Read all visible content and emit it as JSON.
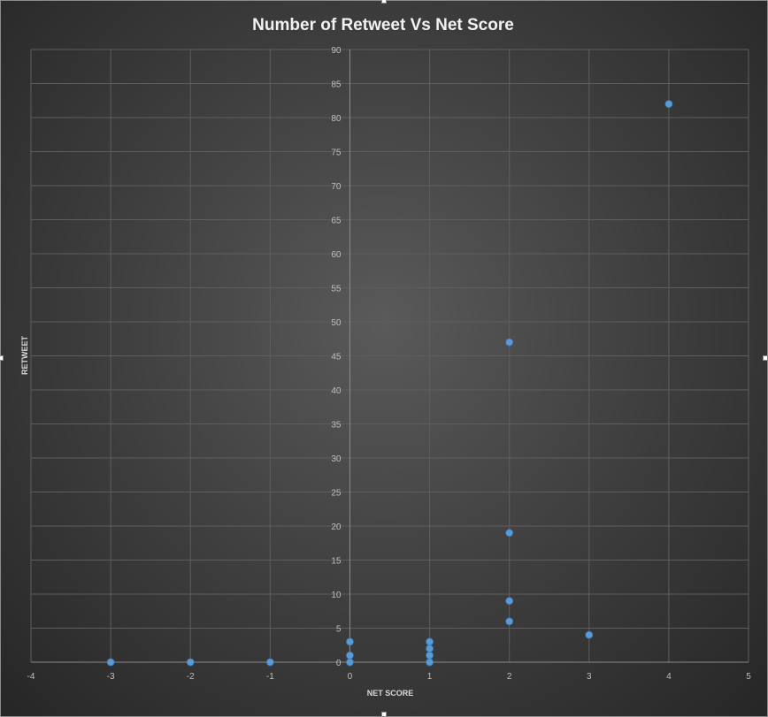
{
  "chart_data": {
    "type": "scatter",
    "title": "Number of Retweet Vs Net Score",
    "xlabel": "NET SCORE",
    "ylabel": "RETWEET",
    "xlim": [
      -4,
      5
    ],
    "ylim": [
      0,
      90
    ],
    "x_ticks": [
      "-4",
      "-3",
      "-2",
      "-1",
      "0",
      "1",
      "2",
      "3",
      "4",
      "5"
    ],
    "y_ticks": [
      "0",
      "5",
      "10",
      "15",
      "20",
      "25",
      "30",
      "35",
      "40",
      "45",
      "50",
      "55",
      "60",
      "65",
      "70",
      "75",
      "80",
      "85",
      "90"
    ],
    "grid": true,
    "marker_color": "#5b9bd5",
    "background": "#404040",
    "points": [
      {
        "x": -3,
        "y": 0
      },
      {
        "x": -2,
        "y": 0
      },
      {
        "x": -1,
        "y": 0
      },
      {
        "x": 0,
        "y": 0
      },
      {
        "x": 0,
        "y": 1
      },
      {
        "x": 0,
        "y": 3
      },
      {
        "x": 1,
        "y": 0
      },
      {
        "x": 1,
        "y": 0
      },
      {
        "x": 1,
        "y": 1
      },
      {
        "x": 1,
        "y": 2
      },
      {
        "x": 1,
        "y": 3
      },
      {
        "x": 2,
        "y": 6
      },
      {
        "x": 2,
        "y": 9
      },
      {
        "x": 2,
        "y": 19
      },
      {
        "x": 2,
        "y": 47
      },
      {
        "x": 3,
        "y": 4
      },
      {
        "x": 4,
        "y": 82
      }
    ]
  }
}
